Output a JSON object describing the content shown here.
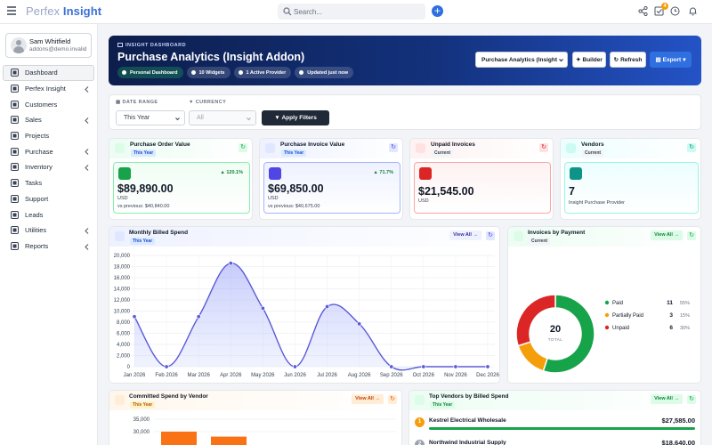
{
  "topbar": {
    "brand_1": "Perfex",
    "brand_2": "Insight",
    "search_placeholder": "Search...",
    "notification_count": "4"
  },
  "user": {
    "name": "Sam Whitfield",
    "email": "addons@demo.invalid"
  },
  "sidebar": {
    "items": [
      {
        "label": "Dashboard",
        "icon": "dashboard-icon",
        "active": true
      },
      {
        "label": "Perfex Insight",
        "icon": "chart-icon",
        "chevron": true
      },
      {
        "label": "Customers",
        "icon": "user-icon"
      },
      {
        "label": "Sales",
        "icon": "bolt-icon",
        "chevron": true
      },
      {
        "label": "Projects",
        "icon": "folder-icon"
      },
      {
        "label": "Purchase",
        "icon": "cart-icon",
        "chevron": true
      },
      {
        "label": "Inventory",
        "icon": "gear-icon",
        "chevron": true
      },
      {
        "label": "Tasks",
        "icon": "check-circle-icon"
      },
      {
        "label": "Support",
        "icon": "lifebuoy-icon"
      },
      {
        "label": "Leads",
        "icon": "target-icon"
      },
      {
        "label": "Utilities",
        "icon": "cog-icon",
        "chevron": true
      },
      {
        "label": "Reports",
        "icon": "trend-icon",
        "chevron": true
      }
    ]
  },
  "hero": {
    "kicker": "INSIGHT DASHBOARD",
    "title": "Purchase Analytics (Insight Addon)",
    "pills": [
      "Personal Dashboard",
      "10 Widgets",
      "1 Active Provider",
      "Updated just now"
    ],
    "select_value": "Purchase Analytics (Insight",
    "builder_label": "Builder",
    "refresh_label": "Refresh",
    "export_label": "Export"
  },
  "filters": {
    "date_label": "DATE RANGE",
    "date_value": "This Year",
    "currency_label": "CURRENCY",
    "currency_value": "All",
    "apply_label": "Apply Filters"
  },
  "stats": [
    {
      "title": "Purchase Order Value",
      "tag": "This Year",
      "value": "$89,890.00",
      "currency": "USD",
      "prev": "vs previous: $40,840.00",
      "pct": "120.1%",
      "accent": "#16a34a"
    },
    {
      "title": "Purchase Invoice Value",
      "tag": "This Year",
      "value": "$69,850.00",
      "currency": "USD",
      "prev": "vs previous: $40,675.00",
      "pct": "71.7%",
      "accent": "#4f46e5"
    },
    {
      "title": "Unpaid Invoices",
      "tag": "Current",
      "value": "$21,545.00",
      "currency": "USD",
      "accent": "#dc2626"
    },
    {
      "title": "Vendors",
      "tag": "Current",
      "value": "7",
      "currency": "Insight Purchase Provider",
      "accent": "#0d9488"
    }
  ],
  "monthly": {
    "title": "Monthly Billed Spend",
    "tag": "This Year",
    "view_all": "View All →"
  },
  "payment": {
    "title": "Invoices by Payment",
    "tag": "Current",
    "view_all": "View All →",
    "total_value": "20",
    "total_label": "TOTAL"
  },
  "committed": {
    "title": "Committed Spend by Vendor",
    "tag": "This Year",
    "view_all": "View All →"
  },
  "top_vendors": {
    "title": "Top Vendors by Billed Spend",
    "tag": "This Year",
    "view_all": "View All →",
    "rows": [
      {
        "rank": "1",
        "name": "Kestrel Electrical Wholesale",
        "amount": "$27,585.00",
        "fill": 1.0,
        "color": "#16a34a",
        "badge": "#f59e0b"
      },
      {
        "rank": "2",
        "name": "Northwind Industrial Supply",
        "amount": "$18,640.00",
        "fill": 0.68,
        "color": "#4f46e5",
        "badge": "#9ca3af"
      }
    ]
  },
  "chart_data": [
    {
      "type": "line",
      "title": "Monthly Billed Spend",
      "x": [
        "Jan 2026",
        "Feb 2026",
        "Mar 2026",
        "Apr 2026",
        "May 2026",
        "Jun 2026",
        "Jul 2026",
        "Aug 2026",
        "Sep 2026",
        "Oct 2026",
        "Nov 2026",
        "Dec 2026"
      ],
      "values": [
        9000,
        0,
        9000,
        18600,
        10500,
        0,
        10800,
        7700,
        0,
        0,
        0,
        0
      ],
      "ylim": [
        0,
        20000
      ],
      "yticks": [
        "0",
        "2,000",
        "4,000",
        "6,000",
        "8,000",
        "10,000",
        "12,000",
        "14,000",
        "16,000",
        "18,000",
        "20,000"
      ],
      "grid": true,
      "color": "#5b5bd6"
    },
    {
      "type": "pie",
      "title": "Invoices by Payment",
      "categories": [
        "Paid",
        "Partially Paid",
        "Unpaid"
      ],
      "values": [
        11,
        3,
        6
      ],
      "percents": [
        "55%",
        "15%",
        "30%"
      ],
      "colors": [
        "#16a34a",
        "#f59e0b",
        "#dc2626"
      ]
    },
    {
      "type": "bar",
      "title": "Committed Spend by Vendor",
      "values": [
        30000,
        28000
      ],
      "yticks": [
        "30,000",
        "35,000"
      ],
      "ylim": [
        0,
        35000
      ],
      "colors": [
        "#f97316",
        "#f97316"
      ]
    }
  ]
}
